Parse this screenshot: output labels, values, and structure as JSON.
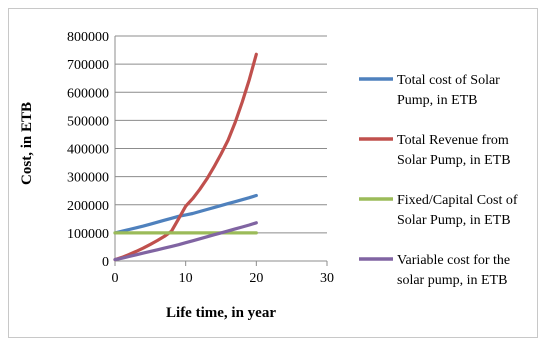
{
  "chart_data": {
    "type": "line",
    "title": "",
    "xlabel": "Life time, in year",
    "ylabel": "Cost, in ETB",
    "xlim": [
      0,
      30
    ],
    "ylim": [
      0,
      800000
    ],
    "xticks": [
      0,
      10,
      20,
      30
    ],
    "yticks": [
      0,
      100000,
      200000,
      300000,
      400000,
      500000,
      600000,
      700000,
      800000
    ],
    "grid": "horizontal",
    "legend_position": "right",
    "x": [
      0,
      1,
      2,
      3,
      4,
      5,
      6,
      7,
      8,
      9,
      10,
      11,
      12,
      13,
      14,
      15,
      16,
      17,
      18,
      19,
      20
    ],
    "series": [
      {
        "name": "Total cost of Solar Pump, in ETB",
        "color": "#4f81bd",
        "values": [
          100000,
          106000,
          112000,
          118000,
          124000,
          131000,
          138000,
          145000,
          152000,
          159000,
          164000,
          169000,
          176000,
          183000,
          190000,
          197000,
          204000,
          211000,
          218000,
          225000,
          233000
        ]
      },
      {
        "name": "Total Revenue from Solar Pump, in ETB",
        "color": "#c0504d",
        "values": [
          5000,
          13000,
          23000,
          34000,
          46000,
          59000,
          73000,
          88000,
          106000,
          150000,
          195000,
          222000,
          255000,
          292000,
          334000,
          380000,
          430000,
          492000,
          565000,
          645000,
          735000
        ]
      },
      {
        "name": "Fixed/Capital Cost of Solar Pump, in ETB",
        "color": "#9bbb59",
        "values": [
          100000,
          100000,
          100000,
          100000,
          100000,
          100000,
          100000,
          100000,
          100000,
          100000,
          100000,
          100000,
          100000,
          100000,
          100000,
          100000,
          100000,
          100000,
          100000,
          100000,
          100000
        ]
      },
      {
        "name": "Variable cost for the solar pump, in ETB",
        "color": "#8064a2",
        "values": [
          5000,
          10000,
          16000,
          22000,
          28000,
          34000,
          40000,
          46000,
          52000,
          58000,
          65000,
          72000,
          79000,
          86000,
          93000,
          100000,
          107000,
          114000,
          121000,
          128000,
          136000
        ]
      }
    ]
  },
  "legend": [
    {
      "lines": [
        "Total cost of Solar",
        "Pump, in ETB"
      ]
    },
    {
      "lines": [
        "Total Revenue from",
        "Solar Pump, in ETB"
      ]
    },
    {
      "lines": [
        "Fixed/Capital Cost of",
        "Solar Pump, in ETB"
      ]
    },
    {
      "lines": [
        "Variable cost for the",
        "solar pump, in ETB"
      ]
    }
  ]
}
